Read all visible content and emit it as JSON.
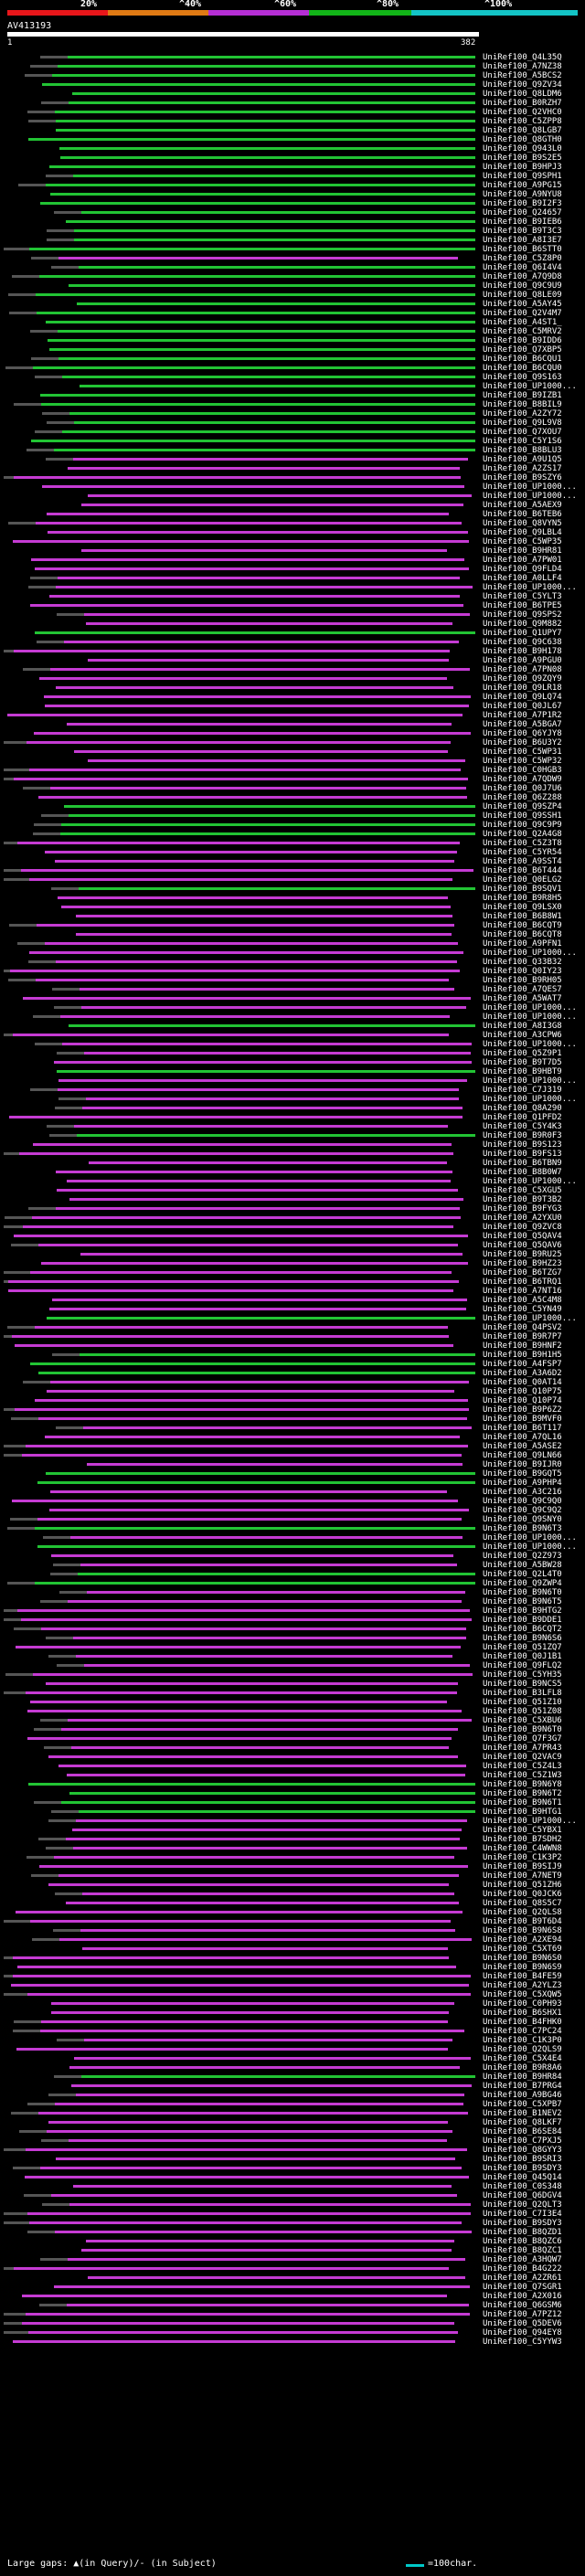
{
  "legend": {
    "labels": [
      "20%",
      "^40%",
      "^60%",
      "^80%",
      "^100%"
    ],
    "colors": [
      "#e8161a",
      "#e07a14",
      "#b52ed4",
      "#12b418",
      "#13c4c6"
    ]
  },
  "query": {
    "id": "AV413193",
    "scale_start": "1",
    "scale_end": "382"
  },
  "colors": {
    "purple": "#c53bd3",
    "green": "#22c434",
    "gap": "#555555"
  },
  "hits": [
    {
      "label": "UniRef100_Q4L35Q",
      "color": "green"
    },
    {
      "label": "UniRef100_A7NZ38",
      "color": "green"
    },
    {
      "label": "UniRef100_A5BCS2",
      "color": "green"
    },
    {
      "label": "UniRef100_Q9ZV34",
      "color": "green"
    },
    {
      "label": "UniRef100_Q8LDM6",
      "color": "green"
    },
    {
      "label": "UniRef100_B0RZH7",
      "color": "green"
    },
    {
      "label": "UniRef100_Q2VHC0",
      "color": "green"
    },
    {
      "label": "UniRef100_C5ZPP8",
      "color": "green"
    },
    {
      "label": "UniRef100_Q8LGB7",
      "color": "green"
    },
    {
      "label": "UniRef100_Q8GTH0",
      "color": "green"
    },
    {
      "label": "UniRef100_Q943L0",
      "color": "green"
    },
    {
      "label": "UniRef100_B9S2E5",
      "color": "green"
    },
    {
      "label": "UniRef100_B9HPJ3",
      "color": "green"
    },
    {
      "label": "UniRef100_Q9SPH1",
      "color": "green"
    },
    {
      "label": "UniRef100_A9PG15",
      "color": "green"
    },
    {
      "label": "UniRef100_A9NYU8",
      "color": "green"
    },
    {
      "label": "UniRef100_B9I2F3",
      "color": "green"
    },
    {
      "label": "UniRef100_Q24657",
      "color": "green"
    },
    {
      "label": "UniRef100_B9IEB6",
      "color": "green"
    },
    {
      "label": "UniRef100_B9T3C3",
      "color": "green"
    },
    {
      "label": "UniRef100_A8I3E7",
      "color": "green"
    },
    {
      "label": "UniRef100_B6STT0",
      "color": "green"
    },
    {
      "label": "UniRef100_C5Z8P0",
      "color": "purple"
    },
    {
      "label": "UniRef100_Q6I4V4",
      "color": "green"
    },
    {
      "label": "UniRef100_A7Q9D8",
      "color": "green"
    },
    {
      "label": "UniRef100_Q9C9U9",
      "color": "green"
    },
    {
      "label": "UniRef100_Q8LE09",
      "color": "green"
    },
    {
      "label": "UniRef100_A5AY45",
      "color": "green"
    },
    {
      "label": "UniRef100_Q2V4M7",
      "color": "green"
    },
    {
      "label": "UniRef100_A4ST1_",
      "color": "green"
    },
    {
      "label": "UniRef100_C5MRV2",
      "color": "green"
    },
    {
      "label": "UniRef100_B9IDD6",
      "color": "green"
    },
    {
      "label": "UniRef100_Q7XBP5",
      "color": "green"
    },
    {
      "label": "UniRef100_B6CQU1",
      "color": "green"
    },
    {
      "label": "UniRef100_B6CQU0",
      "color": "green"
    },
    {
      "label": "UniRef100_Q9S163",
      "color": "green"
    },
    {
      "label": "UniRef100_UP1000...",
      "color": "green"
    },
    {
      "label": "UniRef100_B9IZB1",
      "color": "green"
    },
    {
      "label": "UniRef100_B8BIL9",
      "color": "green"
    },
    {
      "label": "UniRef100_A2ZY72",
      "color": "green"
    },
    {
      "label": "UniRef100_Q9L9V8",
      "color": "green"
    },
    {
      "label": "UniRef100_Q7XOU7",
      "color": "green"
    },
    {
      "label": "UniRef100_C5Y1S6",
      "color": "green"
    },
    {
      "label": "UniRef100_B8BLU3",
      "color": "green"
    },
    {
      "label": "UniRef100_A9U1Q5",
      "color": "purple"
    },
    {
      "label": "UniRef100_A2ZS17",
      "color": "purple"
    },
    {
      "label": "UniRef100_B9SZY6",
      "color": "purple"
    },
    {
      "label": "UniRef100_UP1000...",
      "color": "purple"
    },
    {
      "label": "UniRef100_UP1000...",
      "color": "purple"
    },
    {
      "label": "UniRef100_A5AEX9",
      "color": "purple"
    },
    {
      "label": "UniRef100_B6TEB6",
      "color": "purple"
    },
    {
      "label": "UniRef100_Q8VYN5",
      "color": "purple"
    },
    {
      "label": "UniRef100_Q9LBL4",
      "color": "purple"
    },
    {
      "label": "UniRef100_C5WP35",
      "color": "purple"
    },
    {
      "label": "UniRef100_B9HR81",
      "color": "purple"
    },
    {
      "label": "UniRef100_A7PW01",
      "color": "purple"
    },
    {
      "label": "UniRef100_Q9FLD4",
      "color": "purple"
    },
    {
      "label": "UniRef100_A0LLF4",
      "color": "purple"
    },
    {
      "label": "UniRef100_UP1000...",
      "color": "purple"
    },
    {
      "label": "UniRef100_C5YLT3",
      "color": "purple"
    },
    {
      "label": "UniRef100_B6TPE5",
      "color": "purple"
    },
    {
      "label": "UniRef100_Q9SPS2",
      "color": "purple"
    },
    {
      "label": "UniRef100_Q9M882",
      "color": "purple"
    },
    {
      "label": "UniRef100_Q1UPY7",
      "color": "green"
    },
    {
      "label": "UniRef100_Q9C638",
      "color": "purple"
    },
    {
      "label": "UniRef100_B9H178",
      "color": "purple"
    },
    {
      "label": "UniRef100_A9PGU0",
      "color": "purple"
    },
    {
      "label": "UniRef100_A7PN08",
      "color": "purple"
    },
    {
      "label": "UniRef100_Q9ZQY9",
      "color": "purple"
    },
    {
      "label": "UniRef100_Q9LR18",
      "color": "purple"
    },
    {
      "label": "UniRef100_Q9LQ74",
      "color": "purple"
    },
    {
      "label": "UniRef100_Q0JL67",
      "color": "purple"
    },
    {
      "label": "UniRef100_A7P1R2",
      "color": "purple"
    },
    {
      "label": "UniRef100_A5BGA7",
      "color": "purple"
    },
    {
      "label": "UniRef100_Q6YJY8",
      "color": "purple"
    },
    {
      "label": "UniRef100_B6U3Y2",
      "color": "purple"
    },
    {
      "label": "UniRef100_C5WP31",
      "color": "purple"
    },
    {
      "label": "UniRef100_C5WP32",
      "color": "purple"
    },
    {
      "label": "UniRef100_C0HGB3",
      "color": "purple"
    },
    {
      "label": "UniRef100_A7QDW9",
      "color": "purple"
    },
    {
      "label": "UniRef100_Q0J7U6",
      "color": "purple"
    },
    {
      "label": "UniRef100_Q6Z288",
      "color": "purple"
    },
    {
      "label": "UniRef100_Q9SZP4",
      "color": "green"
    },
    {
      "label": "UniRef100_Q9SSH1",
      "color": "green"
    },
    {
      "label": "UniRef100_Q9C9P9",
      "color": "green"
    },
    {
      "label": "UniRef100_Q2A4G8",
      "color": "green"
    },
    {
      "label": "UniRef100_C5Z3T8",
      "color": "purple"
    },
    {
      "label": "UniRef100_C5YR54",
      "color": "purple"
    },
    {
      "label": "UniRef100_A9SST4",
      "color": "purple"
    },
    {
      "label": "UniRef100_B6T444",
      "color": "purple"
    },
    {
      "label": "UniRef100_Q0ELG2",
      "color": "purple"
    },
    {
      "label": "UniRef100_B9SQV1",
      "color": "green"
    },
    {
      "label": "UniRef100_B9R8H5",
      "color": "purple"
    },
    {
      "label": "UniRef100_Q9LSX0",
      "color": "purple"
    },
    {
      "label": "UniRef100_B6B8W1",
      "color": "purple"
    },
    {
      "label": "UniRef100_B6CQT9",
      "color": "purple"
    },
    {
      "label": "UniRef100_B6CQT8",
      "color": "purple"
    },
    {
      "label": "UniRef100_A9PFN1",
      "color": "purple"
    },
    {
      "label": "UniRef100_UP1000...",
      "color": "purple"
    },
    {
      "label": "UniRef100_Q33B32",
      "color": "purple"
    },
    {
      "label": "UniRef100_Q0IY23",
      "color": "purple"
    },
    {
      "label": "UniRef100_B9RH05",
      "color": "purple"
    },
    {
      "label": "UniRef100_A7QES7",
      "color": "purple"
    },
    {
      "label": "UniRef100_A5WAT7",
      "color": "purple"
    },
    {
      "label": "UniRef100_UP1000...",
      "color": "purple"
    },
    {
      "label": "UniRef100_UP1000...",
      "color": "purple"
    },
    {
      "label": "UniRef100_A8I3G8",
      "color": "green"
    },
    {
      "label": "UniRef100_A3CPW6",
      "color": "purple"
    },
    {
      "label": "UniRef100_UP1000...",
      "color": "purple"
    },
    {
      "label": "UniRef100_Q5Z9P1",
      "color": "purple"
    },
    {
      "label": "UniRef100_B9T7D5",
      "color": "purple"
    },
    {
      "label": "UniRef100_B9HBT9",
      "color": "green"
    },
    {
      "label": "UniRef100_UP1000...",
      "color": "purple"
    },
    {
      "label": "UniRef100_C7J319",
      "color": "purple"
    },
    {
      "label": "UniRef100_UP1000...",
      "color": "purple"
    },
    {
      "label": "UniRef100_Q8A290",
      "color": "purple"
    },
    {
      "label": "UniRef100_Q1PFD2",
      "color": "purple"
    },
    {
      "label": "UniRef100_C5Y4K3",
      "color": "purple"
    },
    {
      "label": "UniRef100_B9R0F3",
      "color": "green"
    },
    {
      "label": "UniRef100_B9S123",
      "color": "purple"
    },
    {
      "label": "UniRef100_B9FS13",
      "color": "purple"
    },
    {
      "label": "UniRef100_B6TBN9",
      "color": "purple"
    },
    {
      "label": "UniRef100_B8B0W7",
      "color": "purple"
    },
    {
      "label": "UniRef100_UP1000...",
      "color": "purple"
    },
    {
      "label": "UniRef100_C5XGU5",
      "color": "purple"
    },
    {
      "label": "UniRef100_B9T3B2",
      "color": "purple"
    },
    {
      "label": "UniRef100_B9FYG3",
      "color": "purple"
    },
    {
      "label": "UniRef100_A2YXU0",
      "color": "purple"
    },
    {
      "label": "UniRef100_Q9ZVC8",
      "color": "purple"
    },
    {
      "label": "UniRef100_Q5QAV4",
      "color": "purple"
    },
    {
      "label": "UniRef100_Q5QAV6",
      "color": "purple"
    },
    {
      "label": "UniRef100_B9RU25",
      "color": "purple"
    },
    {
      "label": "UniRef100_B9HZ23",
      "color": "purple"
    },
    {
      "label": "UniRef100_B6TZG7",
      "color": "purple"
    },
    {
      "label": "UniRef100_B6TRQ1",
      "color": "purple"
    },
    {
      "label": "UniRef100_A7NT16",
      "color": "purple"
    },
    {
      "label": "UniRef100_A5C4M8",
      "color": "purple"
    },
    {
      "label": "UniRef100_C5YN49",
      "color": "purple"
    },
    {
      "label": "UniRef100_UP1000...",
      "color": "green"
    },
    {
      "label": "UniRef100_Q4PSV2",
      "color": "purple"
    },
    {
      "label": "UniRef100_B9R7P7",
      "color": "purple"
    },
    {
      "label": "UniRef100_B9HNF2",
      "color": "purple"
    },
    {
      "label": "UniRef100_B9H1H5",
      "color": "green"
    },
    {
      "label": "UniRef100_A4FSP7",
      "color": "green"
    },
    {
      "label": "UniRef100_A3A6D2",
      "color": "green"
    },
    {
      "label": "UniRef100_Q0AT14",
      "color": "purple"
    },
    {
      "label": "UniRef100_Q10P75",
      "color": "purple"
    },
    {
      "label": "UniRef100_Q10P74",
      "color": "purple"
    },
    {
      "label": "UniRef100_B9P6Z2",
      "color": "purple"
    },
    {
      "label": "UniRef100_B9MVF0",
      "color": "purple"
    },
    {
      "label": "UniRef100_B6T117",
      "color": "purple"
    },
    {
      "label": "UniRef100_A7QL16",
      "color": "purple"
    },
    {
      "label": "UniRef100_A5ASE2",
      "color": "purple"
    },
    {
      "label": "UniRef100_Q9LN66",
      "color": "purple"
    },
    {
      "label": "UniRef100_B9IJR0",
      "color": "purple"
    },
    {
      "label": "UniRef100_B9GQT5",
      "color": "green"
    },
    {
      "label": "UniRef100_A9PHP4",
      "color": "green"
    },
    {
      "label": "UniRef100_A3C216",
      "color": "purple"
    },
    {
      "label": "UniRef100_Q9C9Q0",
      "color": "purple"
    },
    {
      "label": "UniRef100_Q9C9Q2",
      "color": "purple"
    },
    {
      "label": "UniRef100_Q9SNY0",
      "color": "purple"
    },
    {
      "label": "UniRef100_B9N6T3",
      "color": "green"
    },
    {
      "label": "UniRef100_UP1000...",
      "color": "purple"
    },
    {
      "label": "UniRef100_UP1000...",
      "color": "green"
    },
    {
      "label": "UniRef100_Q2Z973",
      "color": "purple"
    },
    {
      "label": "UniRef100_A5BW28",
      "color": "purple"
    },
    {
      "label": "UniRef100_Q2L4T0",
      "color": "green"
    },
    {
      "label": "UniRef100_Q9ZWP4",
      "color": "green"
    },
    {
      "label": "UniRef100_B9N6T0",
      "color": "purple"
    },
    {
      "label": "UniRef100_B9N6T5",
      "color": "purple"
    },
    {
      "label": "UniRef100_B9HTG2",
      "color": "purple"
    },
    {
      "label": "UniRef100_B9DDE1",
      "color": "purple"
    },
    {
      "label": "UniRef100_B6CQT2",
      "color": "purple"
    },
    {
      "label": "UniRef100_B9N6S6",
      "color": "purple"
    },
    {
      "label": "UniRef100_Q51ZQ7",
      "color": "purple"
    },
    {
      "label": "UniRef100_Q0J1B1",
      "color": "purple"
    },
    {
      "label": "UniRef100_Q9FLQ2",
      "color": "purple"
    },
    {
      "label": "UniRef100_C5YH35",
      "color": "purple"
    },
    {
      "label": "UniRef100_B9NCS5",
      "color": "purple"
    },
    {
      "label": "UniRef100_B3LFL8",
      "color": "purple"
    },
    {
      "label": "UniRef100_Q51Z10",
      "color": "purple"
    },
    {
      "label": "UniRef100_Q51Z08",
      "color": "purple"
    },
    {
      "label": "UniRef100_C5XBU6",
      "color": "purple"
    },
    {
      "label": "UniRef100_B9N6T0",
      "color": "purple"
    },
    {
      "label": "UniRef100_Q7F3G7",
      "color": "purple"
    },
    {
      "label": "UniRef100_A7PR43",
      "color": "purple"
    },
    {
      "label": "UniRef100_Q2VAC9",
      "color": "purple"
    },
    {
      "label": "UniRef100_C5Z4L3",
      "color": "purple"
    },
    {
      "label": "UniRef100_C5Z1W3",
      "color": "purple"
    },
    {
      "label": "UniRef100_B9N6Y8",
      "color": "green"
    },
    {
      "label": "UniRef100_B9N6T2",
      "color": "green"
    },
    {
      "label": "UniRef100_B9N6T1",
      "color": "green"
    },
    {
      "label": "UniRef100_B9HTG1",
      "color": "green"
    },
    {
      "label": "UniRef100_UP1000...",
      "color": "purple"
    },
    {
      "label": "UniRef100_C5YBX1",
      "color": "purple"
    },
    {
      "label": "UniRef100_B7SDH2",
      "color": "purple"
    },
    {
      "label": "UniRef100_C4WWN8",
      "color": "purple"
    },
    {
      "label": "UniRef100_C1K3P2",
      "color": "purple"
    },
    {
      "label": "UniRef100_B9SIJ9",
      "color": "purple"
    },
    {
      "label": "UniRef100_A7NET9",
      "color": "purple"
    },
    {
      "label": "UniRef100_Q51ZH6",
      "color": "purple"
    },
    {
      "label": "UniRef100_Q0JCK6",
      "color": "purple"
    },
    {
      "label": "UniRef100_Q8S5C7",
      "color": "purple"
    },
    {
      "label": "UniRef100_Q2QLS8",
      "color": "purple"
    },
    {
      "label": "UniRef100_B9T6D4",
      "color": "purple"
    },
    {
      "label": "UniRef100_B9N6S8",
      "color": "purple"
    },
    {
      "label": "UniRef100_A2XE94",
      "color": "purple"
    },
    {
      "label": "UniRef100_C5XT69",
      "color": "purple"
    },
    {
      "label": "UniRef100_B9N6S0",
      "color": "purple"
    },
    {
      "label": "UniRef100_B9N6S9",
      "color": "purple"
    },
    {
      "label": "UniRef100_B4FE59",
      "color": "purple"
    },
    {
      "label": "UniRef100_A2YLZ3",
      "color": "purple"
    },
    {
      "label": "UniRef100_C5XQW5",
      "color": "purple"
    },
    {
      "label": "UniRef100_C0PH93",
      "color": "purple"
    },
    {
      "label": "UniRef100_B6SHX1",
      "color": "purple"
    },
    {
      "label": "UniRef100_B4FHK0",
      "color": "purple"
    },
    {
      "label": "UniRef100_C7PC24",
      "color": "purple"
    },
    {
      "label": "UniRef100_C1K3P0",
      "color": "purple"
    },
    {
      "label": "UniRef100_Q2QLS9",
      "color": "purple"
    },
    {
      "label": "UniRef100_C5X4E4",
      "color": "purple"
    },
    {
      "label": "UniRef100_B9R8A6",
      "color": "purple"
    },
    {
      "label": "UniRef100_B9HR84",
      "color": "green"
    },
    {
      "label": "UniRef100_B7PRG4",
      "color": "purple"
    },
    {
      "label": "UniRef100_A9BG46",
      "color": "purple"
    },
    {
      "label": "UniRef100_C5XPB7",
      "color": "purple"
    },
    {
      "label": "UniRef100_B1NEV2",
      "color": "purple"
    },
    {
      "label": "UniRef100_Q8LKF7",
      "color": "purple"
    },
    {
      "label": "UniRef100_B6SE84",
      "color": "purple"
    },
    {
      "label": "UniRef100_C7PXJ5",
      "color": "purple"
    },
    {
      "label": "UniRef100_Q8GYY3",
      "color": "purple"
    },
    {
      "label": "UniRef100_B9SRI3",
      "color": "purple"
    },
    {
      "label": "UniRef100_B9SDY3",
      "color": "purple"
    },
    {
      "label": "UniRef100_Q45Q14",
      "color": "purple"
    },
    {
      "label": "UniRef100_C0S348",
      "color": "purple"
    },
    {
      "label": "UniRef100_Q6DGV4",
      "color": "purple"
    },
    {
      "label": "UniRef100_Q2QLT3",
      "color": "purple"
    },
    {
      "label": "UniRef100_C7I3E4",
      "color": "purple"
    },
    {
      "label": "UniRef100_B9SDY3",
      "color": "purple"
    },
    {
      "label": "UniRef100_B8QZD1",
      "color": "purple"
    },
    {
      "label": "UniRef100_B8QZC6",
      "color": "purple"
    },
    {
      "label": "UniRef100_B8QZC1",
      "color": "purple"
    },
    {
      "label": "UniRef100_A3HQW7",
      "color": "purple"
    },
    {
      "label": "UniRef100_B4G222",
      "color": "purple"
    },
    {
      "label": "UniRef100_A2ZR61",
      "color": "purple"
    },
    {
      "label": "UniRef100_Q7SGR1",
      "color": "purple"
    },
    {
      "label": "UniRef100_A2X016",
      "color": "purple"
    },
    {
      "label": "UniRef100_Q6GSM6",
      "color": "purple"
    },
    {
      "label": "UniRef100_A7PZ12",
      "color": "purple"
    },
    {
      "label": "UniRef100_Q5DEV6",
      "color": "purple"
    },
    {
      "label": "UniRef100_Q94EY8",
      "color": "purple"
    },
    {
      "label": "UniRef100_C5YYW3",
      "color": "purple"
    }
  ],
  "footer": {
    "gaps_text": "Large gaps: ▲(in Query)/- (in Subject)",
    "scale_text": "=100char."
  }
}
